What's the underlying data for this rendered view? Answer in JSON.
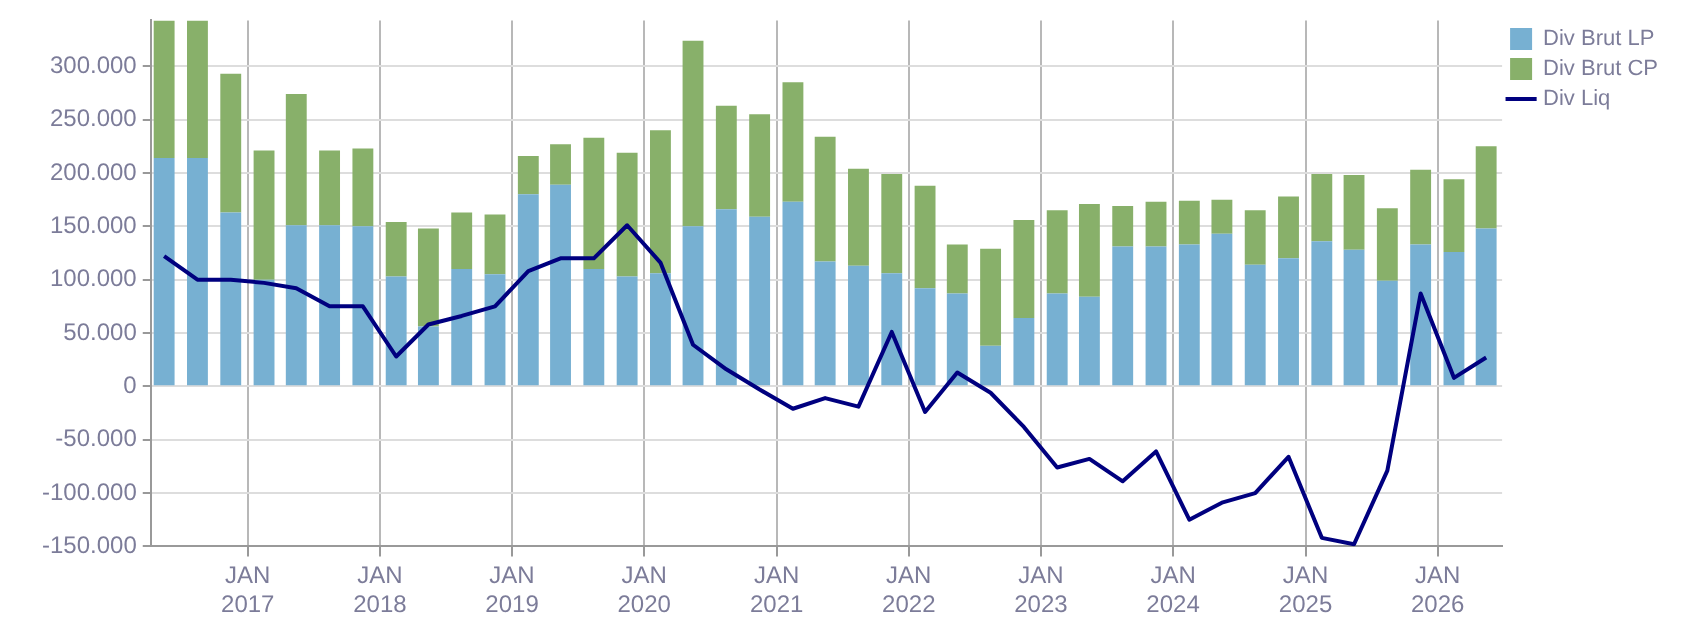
{
  "chart_data": {
    "type": "bar",
    "stacked": true,
    "x": [
      "2016-05-15",
      "2016-08-15",
      "2016-11-15",
      "2017-02-15",
      "2017-05-15",
      "2017-08-15",
      "2017-11-15",
      "2018-02-15",
      "2018-05-15",
      "2018-08-15",
      "2018-11-15",
      "2019-02-15",
      "2019-05-15",
      "2019-08-15",
      "2019-11-15",
      "2020-02-15",
      "2020-05-15",
      "2020-08-15",
      "2020-11-15",
      "2021-02-15",
      "2021-05-15",
      "2021-08-15",
      "2021-11-15",
      "2022-02-15",
      "2022-05-15",
      "2022-08-15",
      "2022-11-15",
      "2023-02-15",
      "2023-05-15",
      "2023-08-15",
      "2023-11-15",
      "2024-02-15",
      "2024-05-15",
      "2024-08-15",
      "2024-11-15",
      "2025-02-15",
      "2025-05-15",
      "2025-08-15",
      "2025-11-15",
      "2026-02-15",
      "2026-05-15"
    ],
    "series": [
      {
        "name": "Div Brut LP",
        "color": "#77b0d2",
        "values": [
          214000,
          214000,
          163000,
          100000,
          151000,
          151000,
          150000,
          103000,
          56000,
          110000,
          105000,
          180000,
          189000,
          110000,
          103000,
          106000,
          150000,
          166000,
          159000,
          173000,
          117000,
          113000,
          106000,
          92000,
          87000,
          38000,
          64000,
          87000,
          84000,
          131000,
          131000,
          133000,
          143000,
          114000,
          120000,
          136000,
          128000,
          99000,
          133000,
          126000,
          148000
        ]
      },
      {
        "name": "Div Brut CP",
        "color": "#88b06a",
        "values": [
          129000,
          129000,
          130000,
          121000,
          123000,
          70000,
          73000,
          51000,
          92000,
          53000,
          56000,
          36000,
          38000,
          123000,
          116000,
          134000,
          174000,
          97000,
          96000,
          112000,
          117000,
          91000,
          93000,
          96000,
          46000,
          91000,
          92000,
          78000,
          87000,
          38000,
          42000,
          41000,
          32000,
          51000,
          58000,
          63000,
          70000,
          68000,
          70000,
          68000,
          77000
        ]
      },
      {
        "name": "Div Liq",
        "type": "line",
        "color": "#00007f",
        "values": [
          122000,
          100000,
          100000,
          97000,
          92000,
          75000,
          75000,
          28000,
          58000,
          66000,
          75000,
          108000,
          120000,
          120000,
          151000,
          116000,
          39000,
          16000,
          -3000,
          -21000,
          -11000,
          -19000,
          51000,
          -24000,
          13000,
          -6000,
          -38000,
          -76000,
          -68000,
          -89000,
          -61000,
          -125000,
          -109000,
          -100000,
          -66000,
          -142000,
          -148000,
          -79000,
          87000,
          8000,
          27000
        ]
      }
    ],
    "xlim": [
      "2016-04-08",
      "2026-06-28"
    ],
    "xticks": [
      {
        "value": "2017-01",
        "label": "JAN 2017"
      },
      {
        "value": "2018-01",
        "label": "JAN 2018"
      },
      {
        "value": "2019-01",
        "label": "JAN 2019"
      },
      {
        "value": "2020-01",
        "label": "JAN 2020"
      },
      {
        "value": "2021-01",
        "label": "JAN 2021"
      },
      {
        "value": "2022-01",
        "label": "JAN 2022"
      },
      {
        "value": "2023-01",
        "label": "JAN 2023"
      },
      {
        "value": "2024-01",
        "label": "JAN 2024"
      },
      {
        "value": "2025-01",
        "label": "JAN 2025"
      },
      {
        "value": "2026-01",
        "label": "JAN 2026"
      }
    ],
    "ylim": [
      -150000,
      343000
    ],
    "yticks": [
      {
        "value": -150000,
        "label": "-150.000"
      },
      {
        "value": -100000,
        "label": "-100.000"
      },
      {
        "value": -50000,
        "label": "-50.000"
      },
      0,
      {
        "value": 50000,
        "label": "50.000"
      },
      {
        "value": 100000,
        "label": "100.000"
      },
      {
        "value": 150000,
        "label": "150.000"
      },
      {
        "value": 200000,
        "label": "200.000"
      },
      {
        "value": 250000,
        "label": "250.000"
      },
      {
        "value": 300000,
        "label": "300.000"
      }
    ],
    "grid": true,
    "legend": "top right",
    "marker": "none",
    "line_style": "solid"
  }
}
